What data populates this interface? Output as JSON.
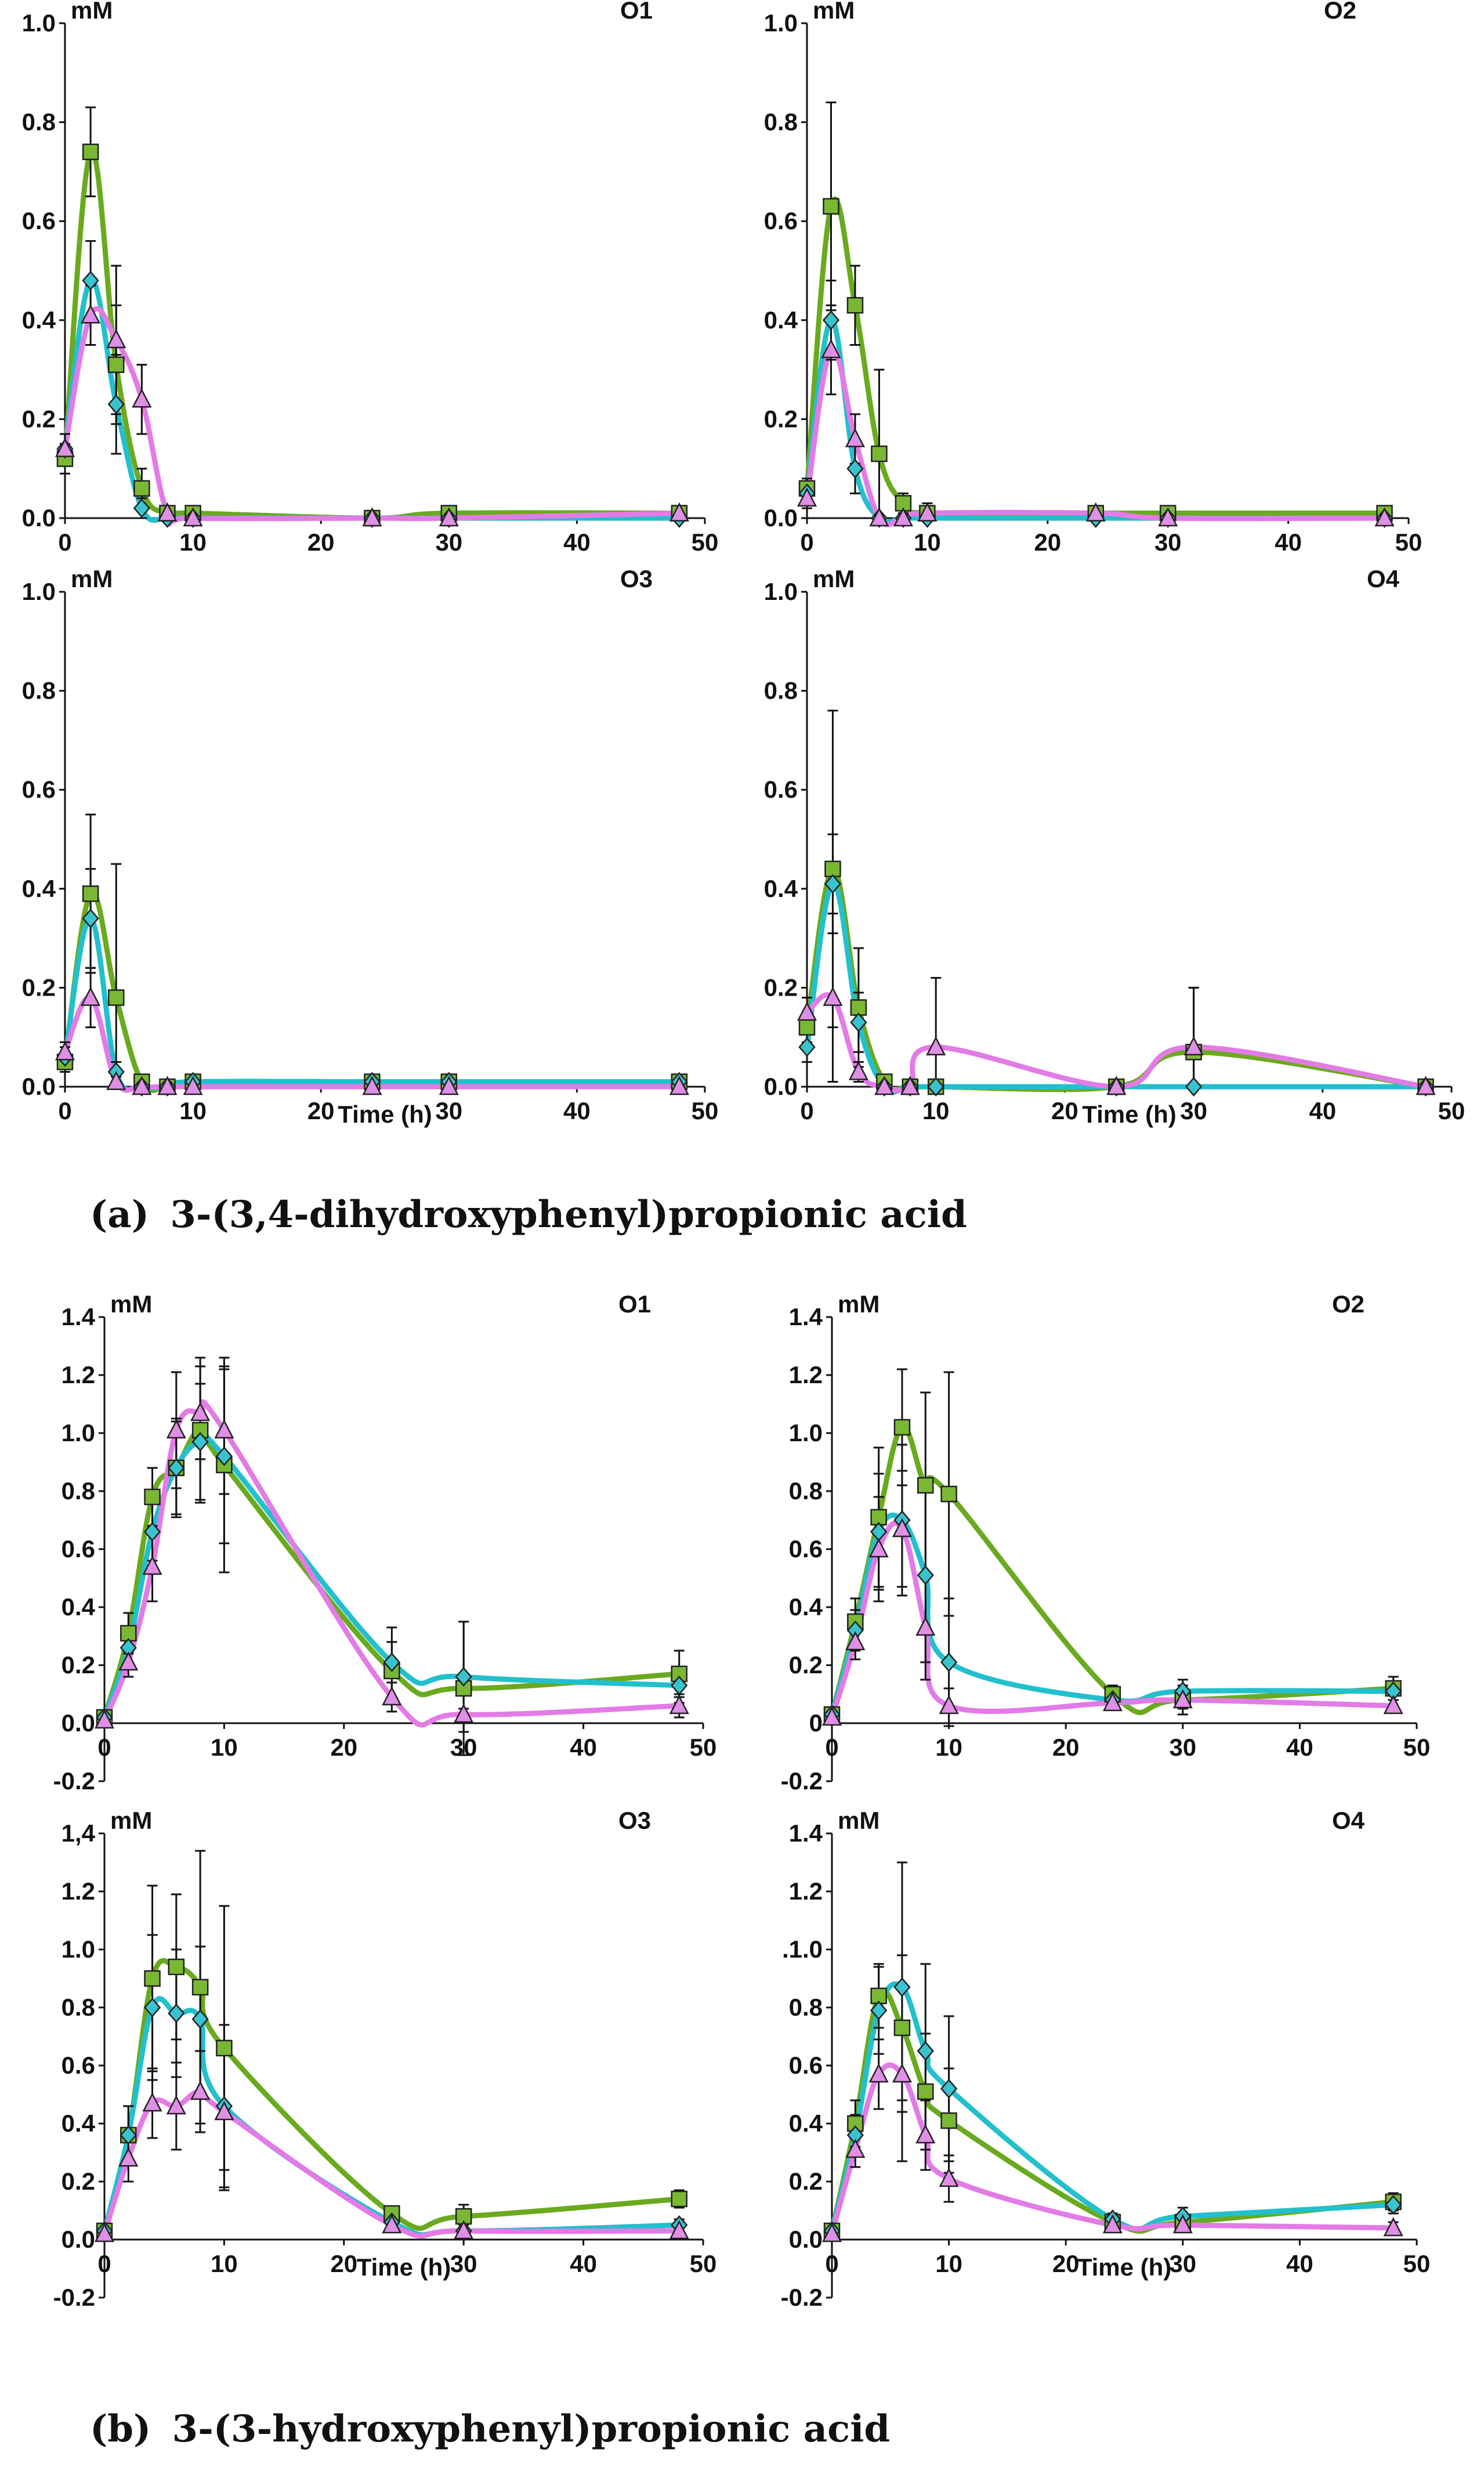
{
  "colors": {
    "control": "#6aaa1e",
    "treatA": "#22c0cc",
    "treatB": "#e37be6",
    "square_fill": "#7ab834",
    "diamond_fill": "#39c3cf",
    "triangle_fill": "#e08fe6",
    "axis": "#111111"
  },
  "captions": {
    "a_label": "(a)",
    "a_text": "3-(3,4-dihydroxyphenyl)propionic acid",
    "b_label": "(b)",
    "b_text": "3-(3-hydroxyphenyl)propionic acid"
  },
  "chart_data": [
    {
      "id": "a-O1",
      "type": "line",
      "title": "O1",
      "unit": "mM",
      "xlabel": "",
      "xlim": [
        0,
        50
      ],
      "ylim": [
        0,
        1
      ],
      "xticks": [
        "0",
        "10",
        "20",
        "30",
        "40",
        "50"
      ],
      "yticks": [
        "0.0",
        "0.2",
        "0.4",
        "0.6",
        "0.8",
        "1.0"
      ],
      "series": [
        {
          "name": "green-square",
          "marker": "square",
          "x": [
            0,
            2,
            4,
            6,
            8,
            10,
            24,
            30,
            48
          ],
          "y": [
            0.12,
            0.74,
            0.31,
            0.06,
            0.01,
            0.01,
            0.0,
            0.01,
            0.01
          ],
          "err": [
            0.03,
            0.09,
            0.12,
            0.04,
            0,
            0,
            0,
            0,
            0
          ]
        },
        {
          "name": "cyan-diamond",
          "marker": "diamond",
          "x": [
            0,
            2,
            4,
            6,
            8,
            10,
            24,
            30,
            48
          ],
          "y": [
            0.14,
            0.48,
            0.23,
            0.02,
            0.0,
            0.0,
            0.0,
            0.0,
            0.0
          ],
          "err": [
            0.03,
            0.08,
            0.1,
            0.02,
            0,
            0,
            0,
            0,
            0
          ]
        },
        {
          "name": "pink-triangle",
          "marker": "triangle",
          "x": [
            0,
            2,
            4,
            6,
            8,
            10,
            24,
            30,
            48
          ],
          "y": [
            0.14,
            0.41,
            0.36,
            0.24,
            0.01,
            0.0,
            0.0,
            0.0,
            0.01
          ],
          "err": [
            0.03,
            0.06,
            0.15,
            0.07,
            0,
            0,
            0,
            0,
            0
          ]
        }
      ]
    },
    {
      "id": "a-O2",
      "type": "line",
      "title": "O2",
      "unit": "mM",
      "xlabel": "",
      "xlim": [
        0,
        50
      ],
      "ylim": [
        0,
        1
      ],
      "xticks": [
        "0",
        "10",
        "20",
        "30",
        "40",
        "50"
      ],
      "yticks": [
        "0.0",
        "0.2",
        "0.4",
        "0.6",
        "0.8",
        "1.0"
      ],
      "series": [
        {
          "name": "green-square",
          "marker": "square",
          "x": [
            0,
            2,
            4,
            6,
            8,
            10,
            24,
            30,
            48
          ],
          "y": [
            0.06,
            0.63,
            0.43,
            0.13,
            0.03,
            0.01,
            0.01,
            0.01,
            0.01
          ],
          "err": [
            0.02,
            0.21,
            0.08,
            0.17,
            0.02,
            0.01,
            0,
            0,
            0
          ]
        },
        {
          "name": "cyan-diamond",
          "marker": "diamond",
          "x": [
            0,
            2,
            4,
            6,
            8,
            10,
            24,
            30,
            48
          ],
          "y": [
            0.05,
            0.4,
            0.1,
            0.0,
            0.0,
            0.0,
            0.0,
            0.0,
            0.0
          ],
          "err": [
            0.02,
            0.08,
            0.05,
            0,
            0,
            0,
            0,
            0,
            0
          ]
        },
        {
          "name": "pink-triangle",
          "marker": "triangle",
          "x": [
            0,
            2,
            4,
            6,
            8,
            10,
            24,
            30,
            48
          ],
          "y": [
            0.04,
            0.34,
            0.16,
            0.0,
            0.0,
            0.01,
            0.01,
            0.0,
            0.0
          ],
          "err": [
            0.02,
            0.09,
            0.05,
            0,
            0,
            0.02,
            0,
            0,
            0
          ]
        }
      ]
    },
    {
      "id": "a-O3",
      "type": "line",
      "title": "O3",
      "unit": "mM",
      "xlabel": "Time (h)",
      "xlim": [
        0,
        50
      ],
      "ylim": [
        0,
        1
      ],
      "xticks": [
        "0",
        "10",
        "20",
        "30",
        "40",
        "50"
      ],
      "yticks": [
        "0.0",
        "0.2",
        "0.4",
        "0.6",
        "0.8",
        "1.0"
      ],
      "series": [
        {
          "name": "green-square",
          "marker": "square",
          "x": [
            0,
            2,
            4,
            6,
            8,
            10,
            24,
            30,
            48
          ],
          "y": [
            0.05,
            0.39,
            0.18,
            0.01,
            0.0,
            0.01,
            0.01,
            0.01,
            0.01
          ],
          "err": [
            0.02,
            0.16,
            0.27,
            0,
            0,
            0,
            0,
            0,
            0
          ]
        },
        {
          "name": "cyan-diamond",
          "marker": "diamond",
          "x": [
            0,
            2,
            4,
            6,
            8,
            10,
            24,
            30,
            48
          ],
          "y": [
            0.06,
            0.34,
            0.03,
            0.0,
            0.0,
            0.01,
            0.01,
            0.01,
            0.01
          ],
          "err": [
            0.02,
            0.1,
            0.02,
            0,
            0,
            0,
            0,
            0,
            0
          ]
        },
        {
          "name": "pink-triangle",
          "marker": "triangle",
          "x": [
            0,
            2,
            4,
            6,
            8,
            10,
            24,
            30,
            48
          ],
          "y": [
            0.07,
            0.18,
            0.01,
            0.0,
            0.0,
            0.0,
            0.0,
            0.0,
            0.0
          ],
          "err": [
            0.02,
            0.06,
            0.01,
            0,
            0,
            0,
            0,
            0,
            0
          ]
        }
      ]
    },
    {
      "id": "a-O4",
      "type": "line",
      "title": "O4",
      "unit": "mM",
      "xlabel": "Time (h)",
      "xlim": [
        0,
        50
      ],
      "ylim": [
        0,
        1
      ],
      "xticks": [
        "0",
        "10",
        "20",
        "30",
        "40",
        "50"
      ],
      "yticks": [
        "0.0",
        "0.2",
        "0.4",
        "0.6",
        "0.8",
        "1.0"
      ],
      "series": [
        {
          "name": "green-square",
          "marker": "square",
          "x": [
            0,
            2,
            4,
            6,
            8,
            10,
            24,
            30,
            48
          ],
          "y": [
            0.12,
            0.44,
            0.16,
            0.01,
            0.0,
            0.0,
            0.0,
            0.07,
            0.0
          ],
          "err": [
            0.03,
            0.32,
            0.12,
            0,
            0,
            0,
            0,
            0.13,
            0
          ]
        },
        {
          "name": "cyan-diamond",
          "marker": "diamond",
          "x": [
            0,
            2,
            4,
            6,
            8,
            10,
            24,
            30,
            48
          ],
          "y": [
            0.08,
            0.41,
            0.13,
            0.0,
            0.0,
            0.0,
            0.0,
            0.0,
            0.0
          ],
          "err": [
            0.03,
            0.1,
            0.06,
            0,
            0,
            0,
            0,
            0,
            0
          ]
        },
        {
          "name": "pink-triangle",
          "marker": "triangle",
          "x": [
            0,
            2,
            4,
            6,
            8,
            10,
            24,
            30,
            48
          ],
          "y": [
            0.15,
            0.18,
            0.03,
            0.0,
            0.0,
            0.08,
            0.0,
            0.08,
            0.0
          ],
          "err": [
            0.03,
            0.17,
            0.02,
            0,
            0,
            0.14,
            0,
            0.12,
            0
          ]
        }
      ]
    },
    {
      "id": "b-O1",
      "type": "line",
      "title": "O1",
      "unit": "mM",
      "xlabel": "",
      "xlim": [
        0,
        50
      ],
      "ylim": [
        -0.2,
        1.4
      ],
      "xticks": [
        "0",
        "10",
        "20",
        "30",
        "40",
        "50"
      ],
      "yticks": [
        "-0.2",
        "0.0",
        "0.2",
        "0.4",
        "0.6",
        "0.8",
        "1.0",
        "1.2",
        "1.4"
      ],
      "series": [
        {
          "name": "green-square",
          "marker": "square",
          "x": [
            0,
            2,
            4,
            6,
            8,
            10,
            24,
            30,
            48
          ],
          "y": [
            0.02,
            0.31,
            0.78,
            0.88,
            1.01,
            0.89,
            0.18,
            0.12,
            0.17
          ],
          "err": [
            0.01,
            0.07,
            0.1,
            0.17,
            0.25,
            0.37,
            0.1,
            0.23,
            0.08
          ]
        },
        {
          "name": "cyan-diamond",
          "marker": "diamond",
          "x": [
            0,
            2,
            4,
            6,
            8,
            10,
            24,
            30,
            48
          ],
          "y": [
            0.02,
            0.26,
            0.66,
            0.88,
            0.97,
            0.92,
            0.21,
            0.16,
            0.13
          ],
          "err": [
            0.01,
            0.06,
            0.1,
            0.16,
            0.2,
            0.3,
            0.12,
            0.19,
            0.06
          ]
        },
        {
          "name": "pink-triangle",
          "marker": "triangle",
          "x": [
            0,
            2,
            4,
            6,
            8,
            10,
            24,
            30,
            48
          ],
          "y": [
            0.01,
            0.21,
            0.54,
            1.01,
            1.07,
            1.01,
            0.09,
            0.03,
            0.06
          ],
          "err": [
            0.01,
            0.05,
            0.12,
            0.2,
            0.16,
            0.22,
            0.05,
            0.02,
            0.04
          ]
        }
      ]
    },
    {
      "id": "b-O2",
      "type": "line",
      "title": "O2",
      "unit": "mM",
      "xlabel": "",
      "xlim": [
        0,
        50
      ],
      "ylim": [
        -0.2,
        1.4
      ],
      "xticks": [
        "0",
        "10",
        "20",
        "30",
        "40",
        "50"
      ],
      "yticks": [
        "-0.2",
        "0",
        "0.2",
        "0.4",
        "0.6",
        "0.8",
        "1.0",
        "1.2",
        "1.4"
      ],
      "series": [
        {
          "name": "green-square",
          "marker": "square",
          "x": [
            0,
            2,
            4,
            6,
            8,
            10,
            24,
            30,
            48
          ],
          "y": [
            0.03,
            0.35,
            0.71,
            1.02,
            0.82,
            0.79,
            0.1,
            0.08,
            0.12
          ],
          "err": [
            0.01,
            0.08,
            0.24,
            0.2,
            0.32,
            0.42,
            0.03,
            0.05,
            0.04
          ]
        },
        {
          "name": "cyan-diamond",
          "marker": "diamond",
          "x": [
            0,
            2,
            4,
            6,
            8,
            10,
            24,
            30,
            48
          ],
          "y": [
            0.03,
            0.32,
            0.66,
            0.7,
            0.51,
            0.21,
            0.08,
            0.11,
            0.11
          ],
          "err": [
            0.01,
            0.07,
            0.2,
            0.26,
            0.3,
            0.22,
            0.02,
            0.04,
            0.03
          ]
        },
        {
          "name": "pink-triangle",
          "marker": "triangle",
          "x": [
            0,
            2,
            4,
            6,
            8,
            10,
            24,
            30,
            48
          ],
          "y": [
            0.02,
            0.28,
            0.6,
            0.67,
            0.33,
            0.06,
            0.07,
            0.08,
            0.06
          ],
          "err": [
            0.01,
            0.06,
            0.18,
            0.2,
            0.18,
            0.06,
            0.02,
            0.03,
            0.02
          ]
        }
      ]
    },
    {
      "id": "b-O3",
      "type": "line",
      "title": "O3",
      "unit": "mM",
      "xlabel": "Time (h)",
      "xlim": [
        0,
        50
      ],
      "ylim": [
        -0.2,
        1.4
      ],
      "xticks": [
        "0",
        "10",
        "20",
        "30",
        "40",
        "50"
      ],
      "yticks": [
        "-0.2",
        "0.0",
        "0.2",
        "0.4",
        "0.6",
        "0.8",
        "1.0",
        "1.2",
        "1,4"
      ],
      "series": [
        {
          "name": "green-square",
          "marker": "square",
          "x": [
            0,
            2,
            4,
            6,
            8,
            10,
            24,
            30,
            48
          ],
          "y": [
            0.03,
            0.36,
            0.9,
            0.94,
            0.87,
            0.66,
            0.09,
            0.08,
            0.14
          ],
          "err": [
            0.01,
            0.1,
            0.32,
            0.25,
            0.47,
            0.49,
            0.02,
            0.04,
            0.03
          ]
        },
        {
          "name": "cyan-diamond",
          "marker": "diamond",
          "x": [
            0,
            2,
            4,
            6,
            8,
            10,
            24,
            30,
            48
          ],
          "y": [
            0.03,
            0.36,
            0.8,
            0.78,
            0.76,
            0.46,
            0.06,
            0.03,
            0.05
          ],
          "err": [
            0.01,
            0.1,
            0.25,
            0.22,
            0.25,
            0.28,
            0.02,
            0.02,
            0.02
          ]
        },
        {
          "name": "pink-triangle",
          "marker": "triangle",
          "x": [
            0,
            2,
            4,
            6,
            8,
            10,
            24,
            30,
            48
          ],
          "y": [
            0.02,
            0.28,
            0.47,
            0.46,
            0.51,
            0.44,
            0.05,
            0.03,
            0.03
          ],
          "err": [
            0.01,
            0.08,
            0.12,
            0.15,
            0.14,
            0.2,
            0.02,
            0.01,
            0.01
          ]
        }
      ]
    },
    {
      "id": "b-O4",
      "type": "line",
      "title": "O4",
      "unit": "mM",
      "xlabel": "Time (h)",
      "xlim": [
        0,
        50
      ],
      "ylim": [
        -0.2,
        1.4
      ],
      "xticks": [
        "0",
        "10",
        "20",
        "30",
        "40",
        "50"
      ],
      "yticks": [
        "-0.2",
        "0.0",
        "0.2",
        "0.4",
        "0.6",
        "0.8",
        ".1.0",
        "1.2",
        "1.4"
      ],
      "series": [
        {
          "name": "green-square",
          "marker": "square",
          "x": [
            0,
            2,
            4,
            6,
            8,
            10,
            24,
            30,
            48
          ],
          "y": [
            0.03,
            0.4,
            0.84,
            0.73,
            0.51,
            0.41,
            0.06,
            0.06,
            0.13
          ],
          "err": [
            0.01,
            0.08,
            0.11,
            0.25,
            0.2,
            0.18,
            0.02,
            0.03,
            0.03
          ]
        },
        {
          "name": "cyan-diamond",
          "marker": "diamond",
          "x": [
            0,
            2,
            4,
            6,
            8,
            10,
            24,
            30,
            48
          ],
          "y": [
            0.03,
            0.36,
            0.79,
            0.87,
            0.65,
            0.52,
            0.07,
            0.08,
            0.12
          ],
          "err": [
            0.01,
            0.07,
            0.15,
            0.43,
            0.3,
            0.25,
            0.02,
            0.03,
            0.03
          ]
        },
        {
          "name": "pink-triangle",
          "marker": "triangle",
          "x": [
            0,
            2,
            4,
            6,
            8,
            10,
            24,
            30,
            48
          ],
          "y": [
            0.02,
            0.31,
            0.57,
            0.57,
            0.36,
            0.21,
            0.05,
            0.05,
            0.04
          ],
          "err": [
            0.01,
            0.06,
            0.12,
            0.3,
            0.12,
            0.08,
            0.02,
            0.02,
            0.02
          ]
        }
      ]
    }
  ]
}
